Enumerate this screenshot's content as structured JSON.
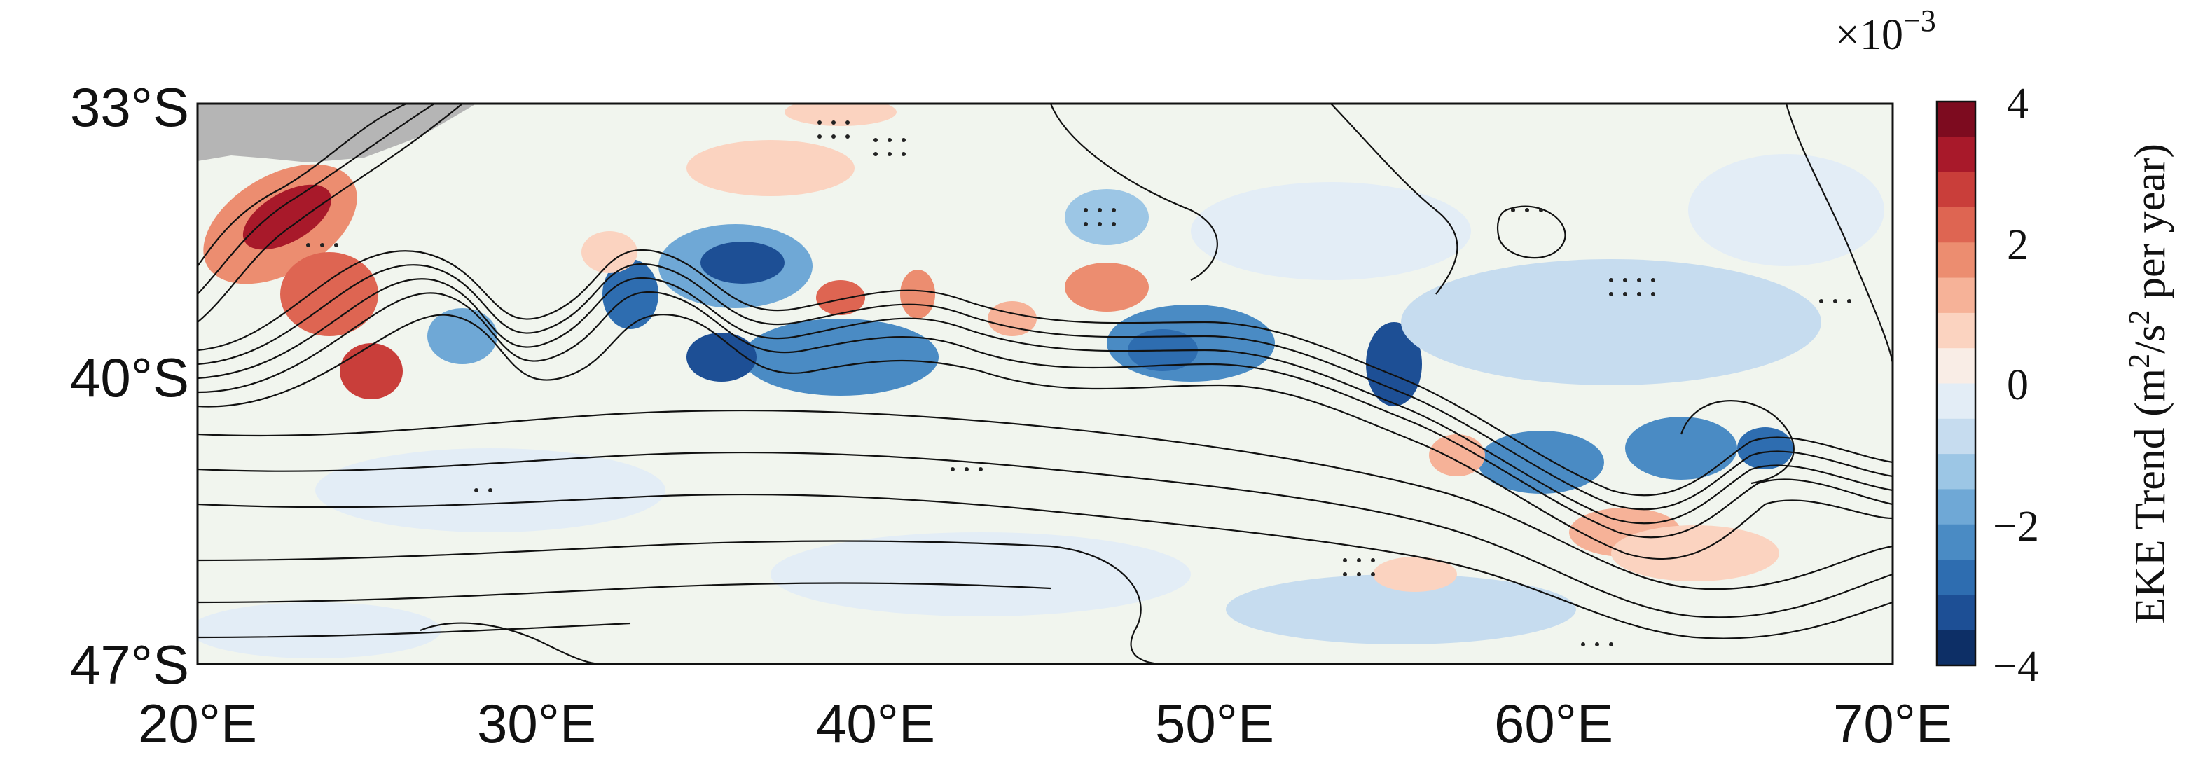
{
  "map": {
    "y_ticks": [
      "33°S",
      "40°S",
      "47°S"
    ],
    "x_ticks": [
      "20°E",
      "30°E",
      "40°E",
      "50°E",
      "60°E",
      "70°E"
    ],
    "lon_range": [
      20,
      70
    ],
    "lat_range": [
      -47,
      -33
    ],
    "land_color": "#b5b5b5",
    "background_color": "#f1f5ee",
    "contour_color": "#111111",
    "stipple_color": "#222222"
  },
  "colorbar": {
    "multiplier": "×10",
    "exponent": "−3",
    "title_prefix": "EKE Trend (m",
    "title_sup1": "2",
    "title_mid": "/s",
    "title_sup2": "2",
    "title_suffix": " per year)",
    "tick_labels": [
      "4",
      "2",
      "0",
      "−2",
      "−4"
    ],
    "range": [
      -4,
      4
    ],
    "colors": [
      "#0d2f66",
      "#1d4f95",
      "#2e6db0",
      "#4a8bc4",
      "#6fa8d6",
      "#9cc6e5",
      "#c6dcef",
      "#e3edf6",
      "#f9ede6",
      "#fbd3c0",
      "#f6b298",
      "#ec8d70",
      "#de6552",
      "#c93e3a",
      "#a8192a",
      "#7d0b1f"
    ]
  }
}
